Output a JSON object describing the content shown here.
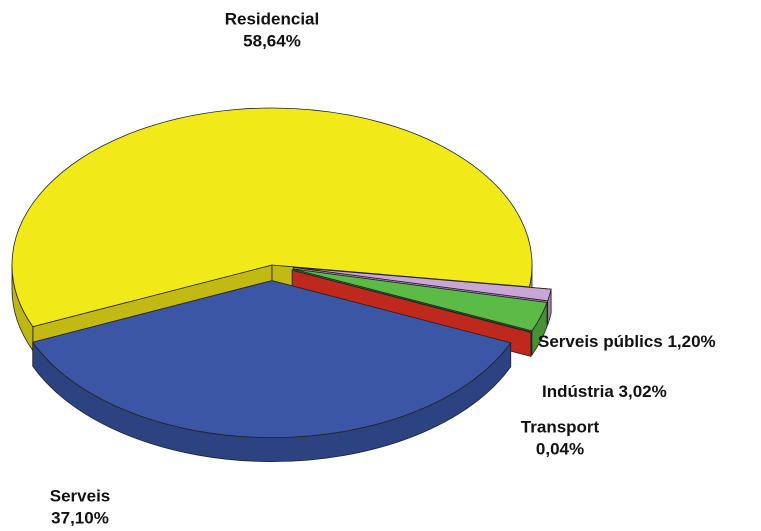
{
  "chart_data": {
    "type": "pie",
    "categories": [
      "Serveis públics",
      "Indústria",
      "Transport",
      "Serveis",
      "Residencial"
    ],
    "values": [
      1.2,
      3.02,
      0.04,
      37.1,
      58.64
    ],
    "value_labels": [
      "1,20%",
      "3,02%",
      "0,04%",
      "37,10%",
      "58,64%"
    ],
    "colors": [
      "#c9a6d6",
      "#5bbb46",
      "#ee3224",
      "#3a56a5",
      "#f2e918"
    ]
  }
}
